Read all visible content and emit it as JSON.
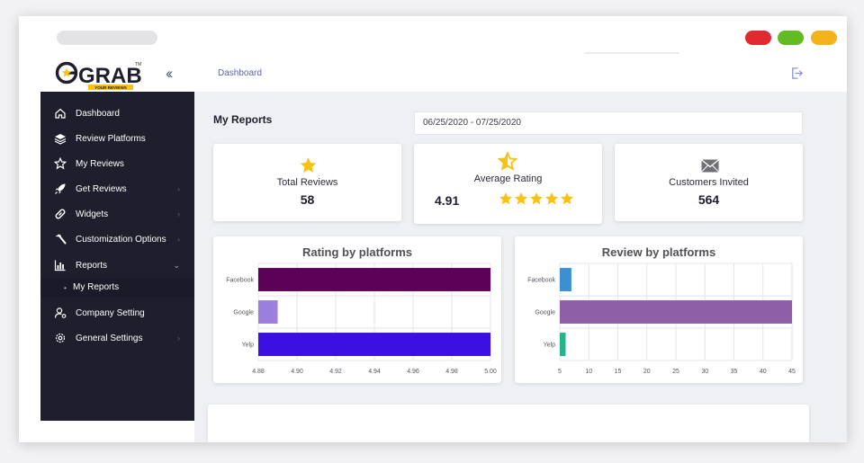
{
  "header": {
    "logo_text": "GRAB",
    "logo_tagline": "YOUR REVIEWS",
    "logo_tm": "TM",
    "breadcrumb": "Dashboard"
  },
  "sidebar": {
    "items": [
      {
        "label": "Dashboard",
        "icon": "home-icon",
        "chevron": ""
      },
      {
        "label": "Review Platforms",
        "icon": "layers-icon",
        "chevron": ""
      },
      {
        "label": "My Reviews",
        "icon": "star-outline-icon",
        "chevron": ""
      },
      {
        "label": "Get Reviews",
        "icon": "rocket-icon",
        "chevron": "›"
      },
      {
        "label": "Widgets",
        "icon": "link-icon",
        "chevron": "›"
      },
      {
        "label": "Customization Options",
        "icon": "hammer-icon",
        "chevron": "›"
      },
      {
        "label": "Reports",
        "icon": "bar-chart-icon",
        "chevron": "⌄"
      },
      {
        "label": "Company Setting",
        "icon": "user-gear-icon",
        "chevron": ""
      },
      {
        "label": "General Settings",
        "icon": "gear-icon",
        "chevron": "›"
      }
    ],
    "subitem": {
      "label": "My Reports",
      "bullet": "•"
    }
  },
  "main": {
    "title": "My Reports",
    "date_range": "06/25/2020 - 07/25/2020",
    "stats": {
      "total_reviews": {
        "label": "Total Reviews",
        "value": "58"
      },
      "average_rating": {
        "label": "Average Rating",
        "value": "4.91",
        "stars": 5
      },
      "customers_invited": {
        "label": "Customers Invited",
        "value": "564"
      }
    }
  },
  "colors": {
    "sidebar_bg": "#1e1e2d",
    "star": "#f7c212",
    "facebook_rating": "#5c0058",
    "google_rating": "#9a7fdc",
    "yelp_rating": "#3c10e1",
    "facebook_review": "#3c8fd0",
    "google_review": "#8f5fa6",
    "yelp_review": "#26b48f"
  },
  "chart_data": [
    {
      "type": "bar",
      "orientation": "horizontal",
      "title": "Rating by platforms",
      "categories": [
        "Facebook",
        "Google",
        "Yelp"
      ],
      "values": [
        5.0,
        4.89,
        5.0
      ],
      "xlim": [
        4.88,
        5.0
      ],
      "xticks": [
        "4.88",
        "4.90",
        "4.92",
        "4.94",
        "4.96",
        "4.98",
        "5.00"
      ],
      "grid": true
    },
    {
      "type": "bar",
      "orientation": "horizontal",
      "title": "Review by platforms",
      "categories": [
        "Facebook",
        "Google",
        "Yelp"
      ],
      "values": [
        7,
        45,
        6
      ],
      "xlim": [
        5,
        45
      ],
      "xticks": [
        "5",
        "10",
        "15",
        "20",
        "25",
        "30",
        "35",
        "40",
        "45"
      ],
      "grid": true
    }
  ]
}
